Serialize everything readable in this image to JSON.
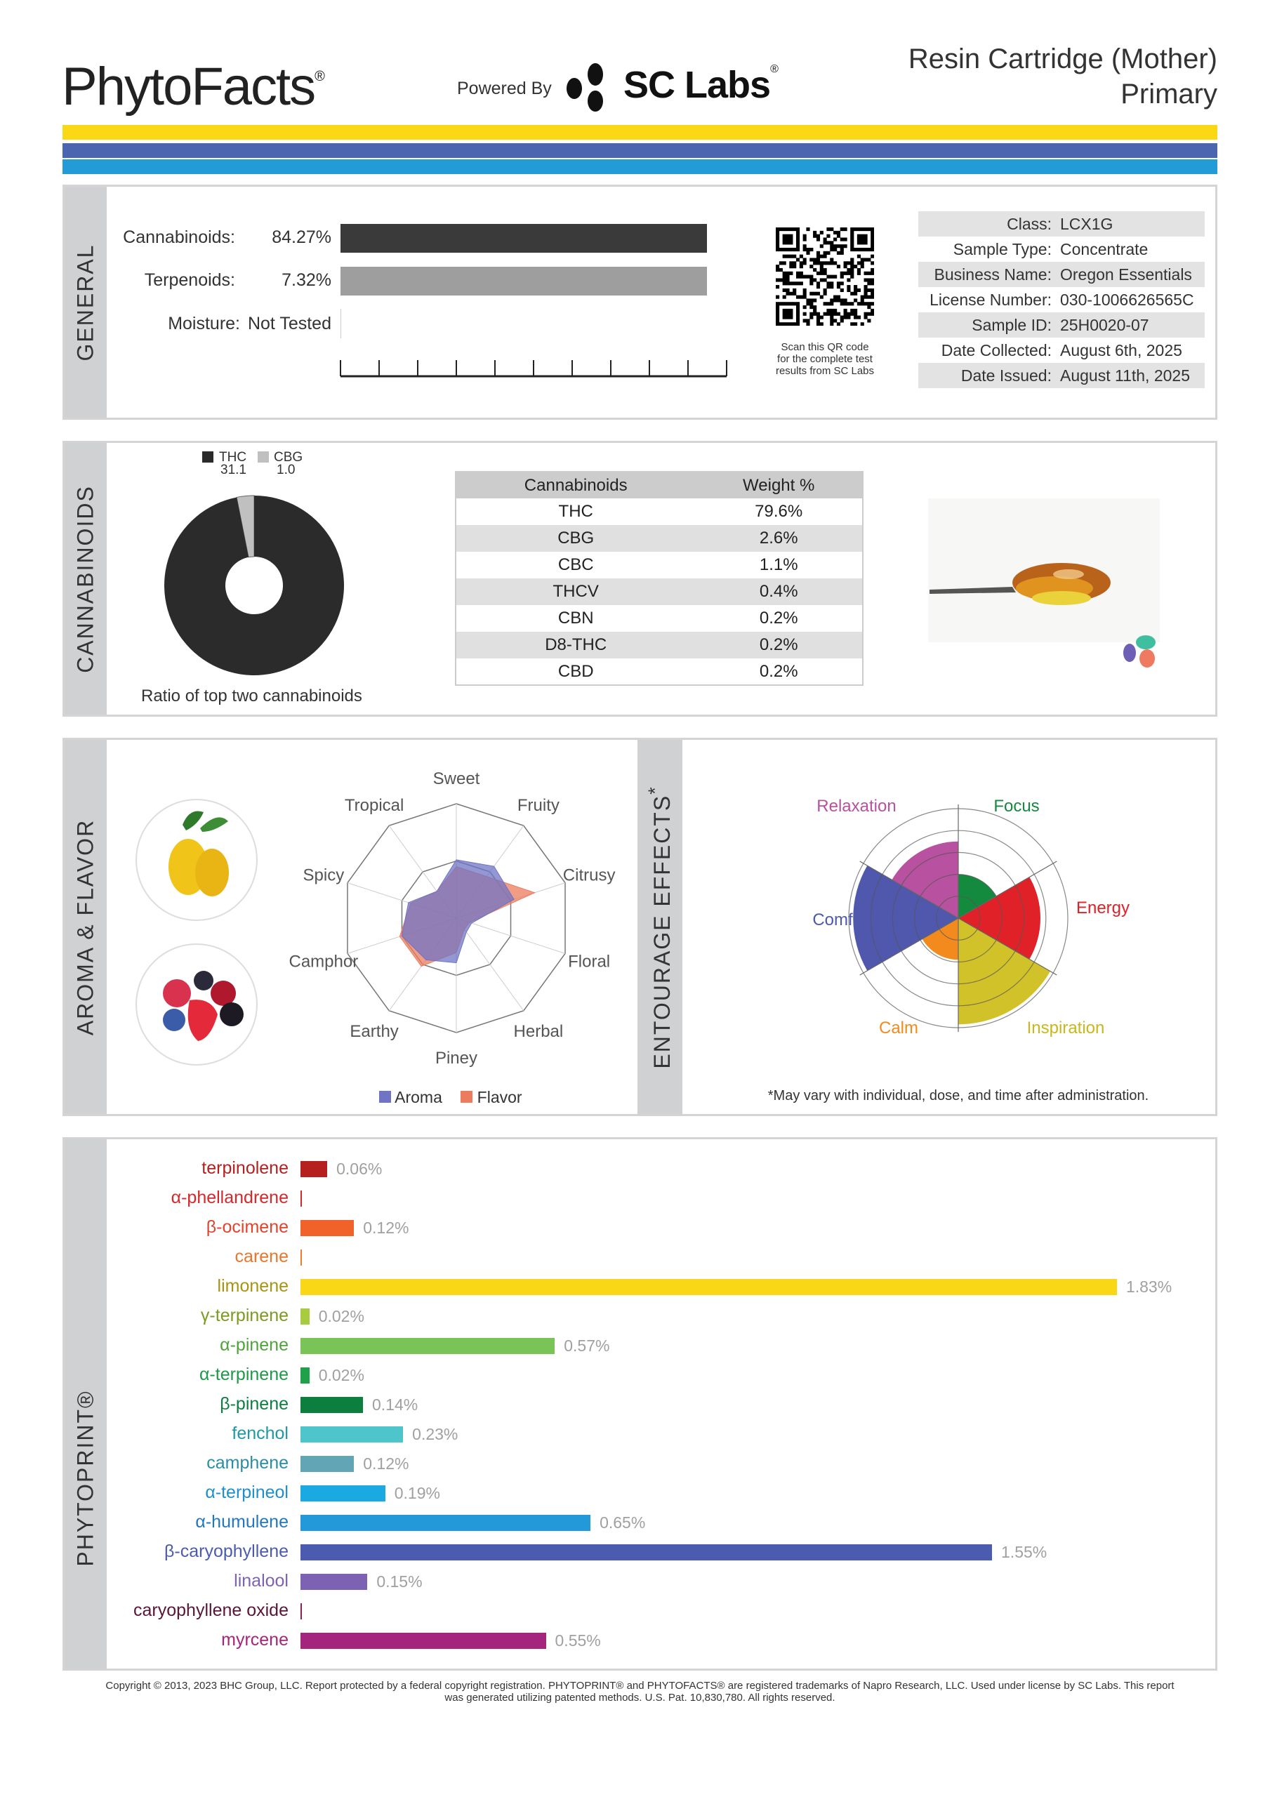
{
  "header": {
    "brand": "PhytoFacts",
    "brand_mark": "®",
    "powered_by": "Powered By",
    "partner": "SC Labs",
    "partner_mark": "®",
    "product_name": "Resin Cartridge (Mother)",
    "product_type": "Primary",
    "stripe_colors": [
      "#fad815",
      "#4c65b0",
      "#239bd7"
    ]
  },
  "general": {
    "section_label": "GENERAL",
    "potency": [
      {
        "label": "Cannabinoids:",
        "value": "84.27%",
        "percent": 84.27,
        "color": "#3a3a3a"
      },
      {
        "label": "Terpenoids:",
        "value": "7.32%",
        "percent": 7.32,
        "color": "#9e9e9e"
      },
      {
        "label": "Moisture:",
        "value": "Not Tested",
        "percent": 0,
        "color": "#cccccc"
      }
    ],
    "qr_caption": [
      "Scan this QR code",
      "for the complete test",
      "results from SC Labs"
    ],
    "info": [
      {
        "label": "Class:",
        "value": "LCX1G"
      },
      {
        "label": "Sample Type:",
        "value": "Concentrate"
      },
      {
        "label": "Business Name:",
        "value": "Oregon Essentials"
      },
      {
        "label": "License Number:",
        "value": "030-1006626565C"
      },
      {
        "label": "Sample ID:",
        "value": "25H0020-07"
      },
      {
        "label": "Date Collected:",
        "value": "August 6th, 2025"
      },
      {
        "label": "Date Issued:",
        "value": "August 11th, 2025"
      }
    ]
  },
  "cannabinoids": {
    "section_label": "CANNABINOIDS",
    "ratio_caption": "Ratio of top two cannabinoids",
    "ratio": [
      {
        "name": "THC",
        "value": "31.1",
        "num": 31.1,
        "color": "#2b2b2b"
      },
      {
        "name": "CBG",
        "value": "1.0",
        "num": 1.0,
        "color": "#c0c0c0"
      }
    ],
    "table_headers": [
      "Cannabinoids",
      "Weight %"
    ],
    "table_rows": [
      [
        "THC",
        "79.6%"
      ],
      [
        "CBG",
        "2.6%"
      ],
      [
        "CBC",
        "1.1%"
      ],
      [
        "THCV",
        "0.4%"
      ],
      [
        "CBN",
        "0.2%"
      ],
      [
        "D8-THC",
        "0.2%"
      ],
      [
        "CBD",
        "0.2%"
      ]
    ]
  },
  "aroma": {
    "section_label": "AROMA & FLAVOR",
    "axes": [
      "Sweet",
      "Fruity",
      "Citrusy",
      "Floral",
      "Herbal",
      "Piney",
      "Earthy",
      "Camphor",
      "Spicy",
      "Tropical"
    ],
    "legend": [
      {
        "name": "Aroma",
        "color": "#6f74c4"
      },
      {
        "name": "Flavor",
        "color": "#ec7c5e"
      }
    ],
    "aroma_values": [
      0.51,
      0.56,
      0.53,
      0.14,
      0.15,
      0.39,
      0.45,
      0.5,
      0.44,
      0.29
    ],
    "flavor_values": [
      0.45,
      0.45,
      0.72,
      0.12,
      0.12,
      0.3,
      0.52,
      0.52,
      0.42,
      0.29
    ]
  },
  "entourage": {
    "section_label": "ENTOURAGE EFFECTS",
    "asterisk": "*",
    "footnote": "*May vary with individual, dose, and time after administration.",
    "effects": [
      {
        "name": "Focus",
        "value": 0.4,
        "color": "#138a3e"
      },
      {
        "name": "Energy",
        "value": 0.75,
        "color": "#e02228"
      },
      {
        "name": "Inspiration",
        "value": 0.97,
        "color": "#d2c22a"
      },
      {
        "name": "Calm",
        "value": 0.38,
        "color": "#f38a1e"
      },
      {
        "name": "Comfort",
        "value": 0.96,
        "color": "#4f58ad"
      },
      {
        "name": "Relaxation",
        "value": 0.7,
        "color": "#b8519f"
      }
    ],
    "label_colors": {
      "Focus": "#138a3e",
      "Energy": "#e02228",
      "Inspiration": "#c9b81c",
      "Calm": "#f38a1e",
      "Comfort": "#4f58ad",
      "Relaxation": "#b8519f"
    }
  },
  "phytoprint": {
    "section_label": "PHYTOPRINT®",
    "terpenes": [
      {
        "name": "terpinolene",
        "value": "0.06%",
        "pct": 0.06,
        "color": "#b5201f",
        "label_color": "#b5201f"
      },
      {
        "name": "α-phellandrene",
        "value": null,
        "pct": 0,
        "color": "#d6282b",
        "label_color": "#d6282b"
      },
      {
        "name": "β-ocimene",
        "value": "0.12%",
        "pct": 0.12,
        "color": "#f1612a",
        "label_color": "#e2432a"
      },
      {
        "name": "carene",
        "value": null,
        "pct": 0,
        "color": "#ee7d2f",
        "label_color": "#e8762c"
      },
      {
        "name": "limonene",
        "value": "1.83%",
        "pct": 1.83,
        "color": "#f9d716",
        "label_color": "#a89413"
      },
      {
        "name": "γ-terpinene",
        "value": "0.02%",
        "pct": 0.02,
        "color": "#a8cb40",
        "label_color": "#7b9b1f"
      },
      {
        "name": "α-pinene",
        "value": "0.57%",
        "pct": 0.57,
        "color": "#7ac356",
        "label_color": "#4fa33a"
      },
      {
        "name": "α-terpinene",
        "value": "0.02%",
        "pct": 0.02,
        "color": "#21a04b",
        "label_color": "#1d9a48"
      },
      {
        "name": "β-pinene",
        "value": "0.14%",
        "pct": 0.14,
        "color": "#0c7f3e",
        "label_color": "#0c7f3e"
      },
      {
        "name": "fenchol",
        "value": "0.23%",
        "pct": 0.23,
        "color": "#4ec4cb",
        "label_color": "#1e9aa2"
      },
      {
        "name": "camphene",
        "value": "0.12%",
        "pct": 0.12,
        "color": "#62a6b6",
        "label_color": "#2a8ea3"
      },
      {
        "name": "α-terpineol",
        "value": "0.19%",
        "pct": 0.19,
        "color": "#1aa9e0",
        "label_color": "#1d8fce"
      },
      {
        "name": "α-humulene",
        "value": "0.65%",
        "pct": 0.65,
        "color": "#2399da",
        "label_color": "#2177c0"
      },
      {
        "name": "β-caryophyllene",
        "value": "1.55%",
        "pct": 1.55,
        "color": "#4b5cb0",
        "label_color": "#4b5cb0"
      },
      {
        "name": "linalool",
        "value": "0.15%",
        "pct": 0.15,
        "color": "#7d62b3",
        "label_color": "#7d62b3"
      },
      {
        "name": "caryophyllene oxide",
        "value": null,
        "pct": 0,
        "color": "#8a1f5a",
        "label_color": "#5a1638"
      },
      {
        "name": "myrcene",
        "value": "0.55%",
        "pct": 0.55,
        "color": "#a3267c",
        "label_color": "#a3267c"
      }
    ]
  },
  "footer": {
    "line1": "Copyright © 2013, 2023 BHC Group, LLC. Report protected by a federal copyright registration. PHYTOPRINT® and PHYTOFACTS® are registered trademarks of Napro Research, LLC. Used under license by SC Labs. This report",
    "line2": "was generated utilizing patented methods. U.S. Pat. 10,830,780. All rights reserved."
  }
}
